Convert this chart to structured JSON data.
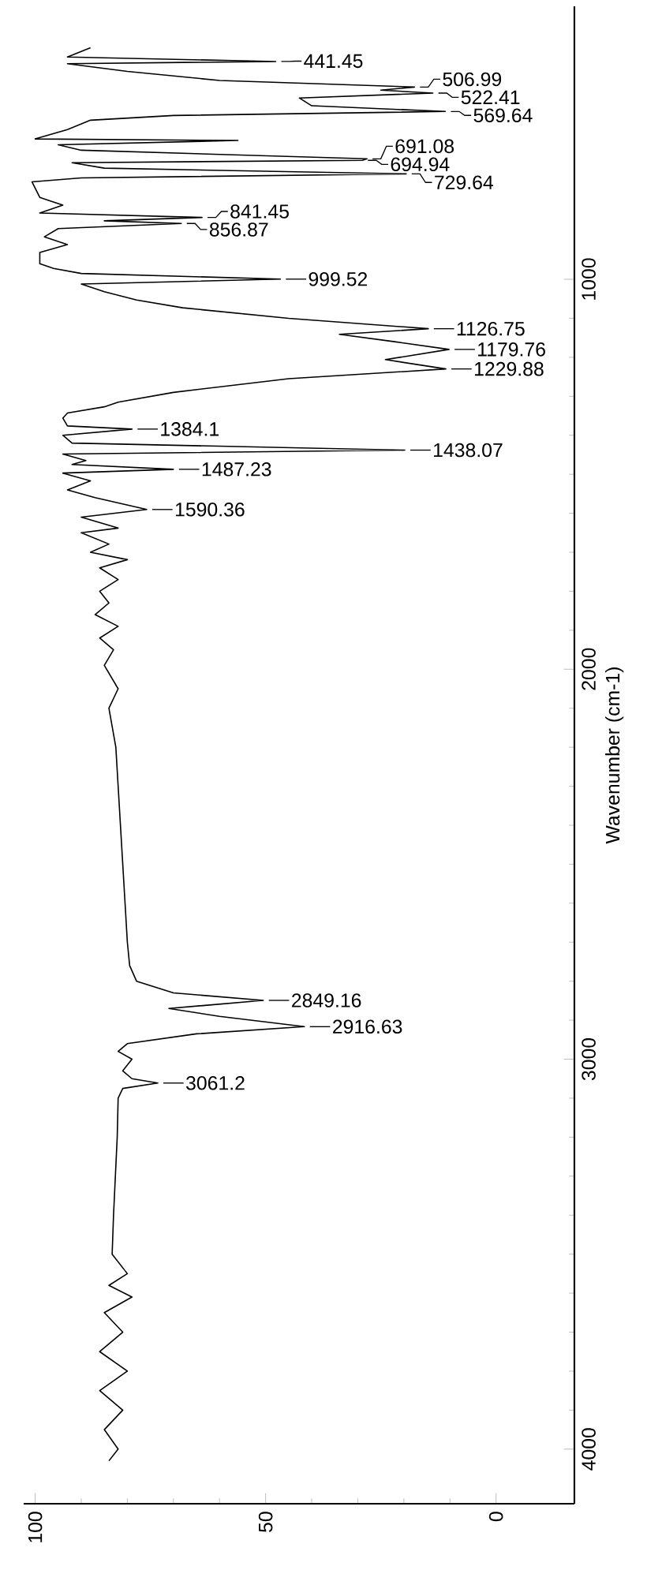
{
  "chart_data": {
    "type": "line",
    "ylabel": "Wavenumber (cm-1)",
    "color": "#000000",
    "x": [
      88,
      93,
      47.8,
      93,
      80,
      60,
      17.7,
      25,
      13.7,
      42.7,
      40,
      11,
      70,
      88,
      93,
      100,
      56,
      95,
      90,
      28,
      29,
      92,
      85,
      19.5,
      90,
      100.7,
      99,
      94,
      99,
      63.8,
      85,
      68.3,
      95,
      98,
      93,
      99,
      99,
      96,
      90,
      46.8,
      90,
      85,
      78,
      68,
      45,
      14.7,
      34,
      22,
      10.2,
      24,
      10.9,
      45,
      70,
      82,
      85,
      93,
      94,
      93,
      79,
      94,
      92,
      19.8,
      94,
      89,
      92,
      70,
      94,
      88,
      93,
      87,
      75.8,
      90,
      82,
      90,
      84,
      88,
      80,
      86,
      82,
      86,
      84,
      87,
      82,
      86,
      83,
      85,
      82,
      84,
      82.5,
      82,
      81.5,
      81,
      80.5,
      80,
      79.5,
      78,
      70,
      50.5,
      71,
      60,
      41.6,
      65,
      80,
      82,
      79,
      81,
      79,
      73.4,
      81,
      82,
      82.2,
      82.6,
      83,
      83.3,
      80,
      84,
      79,
      85,
      81,
      86,
      80,
      86,
      81,
      85,
      82,
      84
    ],
    "values": [
      406,
      430,
      441.45,
      447,
      467,
      490,
      506.99,
      515,
      522.41,
      535,
      555,
      569.64,
      580,
      592,
      616,
      640,
      644,
      655,
      669,
      691.08,
      694.94,
      701,
      715,
      729.64,
      740,
      750,
      790,
      810,
      830,
      841.45,
      850,
      856.87,
      870,
      891,
      911,
      931,
      960,
      972,
      985,
      999.52,
      1012,
      1032,
      1053,
      1073,
      1100,
      1126.75,
      1141,
      1160,
      1179.76,
      1206,
      1229.88,
      1255,
      1290,
      1315,
      1327,
      1343,
      1356,
      1376,
      1384.1,
      1400,
      1420,
      1438.07,
      1448,
      1465,
      1475,
      1487.23,
      1497,
      1517,
      1540,
      1560,
      1590.36,
      1610,
      1638,
      1650,
      1679,
      1700,
      1719,
      1740,
      1770,
      1800,
      1830,
      1860,
      1890,
      1920,
      1950,
      1990,
      2050,
      2100,
      2200,
      2300,
      2400,
      2500,
      2600,
      2700,
      2760,
      2800,
      2830,
      2849.16,
      2870,
      2890,
      2916.63,
      2935,
      2960,
      2980,
      3000,
      3030,
      3050,
      3061.2,
      3075,
      3100,
      3200,
      3300,
      3400,
      3500,
      3550,
      3580,
      3610,
      3650,
      3700,
      3750,
      3800,
      3850,
      3900,
      3950,
      4000,
      4030
    ],
    "xlim": [
      102.5,
      -17
    ],
    "ylim": [
      4140,
      300
    ],
    "xticks": [
      0,
      50,
      100
    ],
    "yticks": [
      1000,
      2000,
      3000,
      4000
    ],
    "annotations": [
      {
        "text": "441.45",
        "x": 47.8,
        "y": 441.45
      },
      {
        "text": "506.99",
        "x": 17.7,
        "y": 506.99
      },
      {
        "text": "522.41",
        "x": 13.7,
        "y": 522.41
      },
      {
        "text": "569.64",
        "x": 11,
        "y": 569.64
      },
      {
        "text": "691.08",
        "x": 28,
        "y": 691.08
      },
      {
        "text": "694.94",
        "x": 29,
        "y": 694.94
      },
      {
        "text": "729.64",
        "x": 19.5,
        "y": 729.64
      },
      {
        "text": "841.45",
        "x": 63.8,
        "y": 841.45
      },
      {
        "text": "856.87",
        "x": 68.3,
        "y": 856.87
      },
      {
        "text": "999.52",
        "x": 46.8,
        "y": 999.52
      },
      {
        "text": "1126.75",
        "x": 14.7,
        "y": 1126.75
      },
      {
        "text": "1179.76",
        "x": 10.2,
        "y": 1179.76
      },
      {
        "text": "1229.88",
        "x": 10.9,
        "y": 1229.88
      },
      {
        "text": "1384.1",
        "x": 79,
        "y": 1384.1
      },
      {
        "text": "1438.07",
        "x": 19.8,
        "y": 1438.07
      },
      {
        "text": "1487.23",
        "x": 70,
        "y": 1487.23
      },
      {
        "text": "1590.36",
        "x": 75.8,
        "y": 1590.36
      },
      {
        "text": "2849.16",
        "x": 50.5,
        "y": 2849.16
      },
      {
        "text": "2916.63",
        "x": 41.6,
        "y": 2916.63
      },
      {
        "text": "3061.2",
        "x": 73.4,
        "y": 3061.2
      }
    ]
  }
}
